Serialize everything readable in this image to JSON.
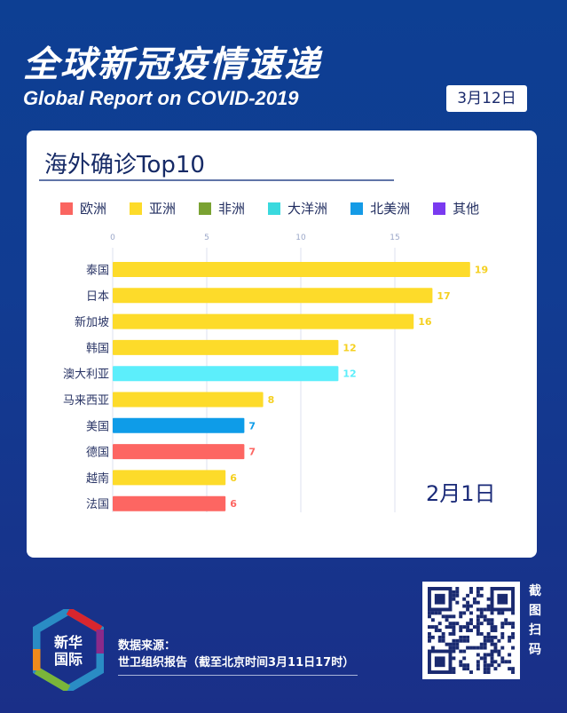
{
  "header": {
    "title": "全球新冠疫情速递",
    "subtitle": "Global Report on COVID-2019",
    "date": "3月12日"
  },
  "card": {
    "title": "海外确诊Top10"
  },
  "legend": [
    {
      "label": "欧洲",
      "color": "#fa6560"
    },
    {
      "label": "亚洲",
      "color": "#fddb2a"
    },
    {
      "label": "非洲",
      "color": "#7aa232"
    },
    {
      "label": "大洋洲",
      "color": "#3ad9de"
    },
    {
      "label": "北美洲",
      "color": "#159be6"
    },
    {
      "label": "其他",
      "color": "#7a3af0"
    }
  ],
  "chart_data": {
    "type": "bar",
    "orientation": "horizontal",
    "categories": [
      "泰国",
      "日本",
      "新加坡",
      "韩国",
      "澳大利亚",
      "马来西亚",
      "美国",
      "德国",
      "越南",
      "法国"
    ],
    "values": [
      19,
      17,
      16,
      12,
      12,
      8,
      7,
      7,
      6,
      6
    ],
    "regions": [
      "亚洲",
      "亚洲",
      "亚洲",
      "亚洲",
      "大洋洲",
      "亚洲",
      "北美洲",
      "欧洲",
      "亚洲",
      "欧洲"
    ],
    "colors": [
      "#fddb2a",
      "#fddb2a",
      "#fddb2a",
      "#fddb2a",
      "#5ceefb",
      "#fddb2a",
      "#0e9ce8",
      "#fd6662",
      "#fddb2a",
      "#fd6662"
    ],
    "xticks": [
      0,
      5,
      10,
      15
    ],
    "xlim": [
      0,
      20
    ],
    "grid": true,
    "annotation": "2月1日"
  },
  "footer": {
    "source_label": "数据来源：",
    "source": "世卫组织报告（截至北京时间3月11日17时）",
    "logo_text": "新华国际",
    "scan": "截图扫码"
  }
}
